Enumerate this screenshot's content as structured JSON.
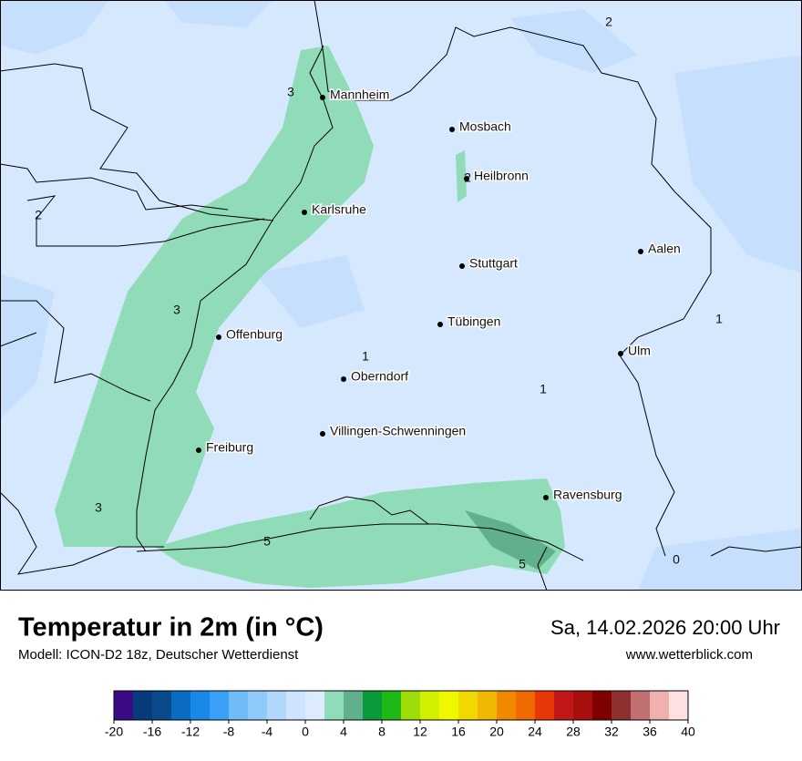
{
  "title": "Temperatur in 2m (in °C)",
  "subtitle": "Modell: ICON-D2 18z, Deutscher Wetterdienst",
  "datetime": "Sa, 14.02.2026 20:00 Uhr",
  "website": "www.wetterblick.com",
  "cities": [
    "Mannheim",
    "Mosbach",
    "Heilbronn",
    "Karlsruhe",
    "Stuttgart",
    "Aalen",
    "Tübingen",
    "Offenburg",
    "Ulm",
    "Oberndorf",
    "Villingen-Schwenningen",
    "Freiburg",
    "Ravensburg"
  ],
  "contour_labels": [
    "2",
    "3",
    "2",
    "3",
    "1",
    "1",
    "1",
    "3",
    "5",
    "5",
    "0",
    "2"
  ],
  "colorbar": {
    "lim": [
      -20,
      40
    ],
    "ticks": [
      -20,
      -16,
      -12,
      -8,
      -4,
      0,
      4,
      8,
      12,
      16,
      20,
      24,
      28,
      32,
      36,
      40
    ],
    "colors": [
      "#3b0b87",
      "#063a7a",
      "#084a8c",
      "#0a6cc0",
      "#1a88e8",
      "#3aa0f5",
      "#70bcf8",
      "#90cafa",
      "#b0d8fc",
      "#cce4fd",
      "#dcecfe",
      "#90dcb8",
      "#60b08c",
      "#0a9a3a",
      "#20b814",
      "#a0dc0a",
      "#d0f000",
      "#f0f800",
      "#f0d800",
      "#f0b800",
      "#f08800",
      "#f06800",
      "#e83808",
      "#c01818",
      "#a81010",
      "#800000",
      "#8c3030",
      "#c07070",
      "#f0b0b0",
      "#ffe0e0"
    ]
  }
}
